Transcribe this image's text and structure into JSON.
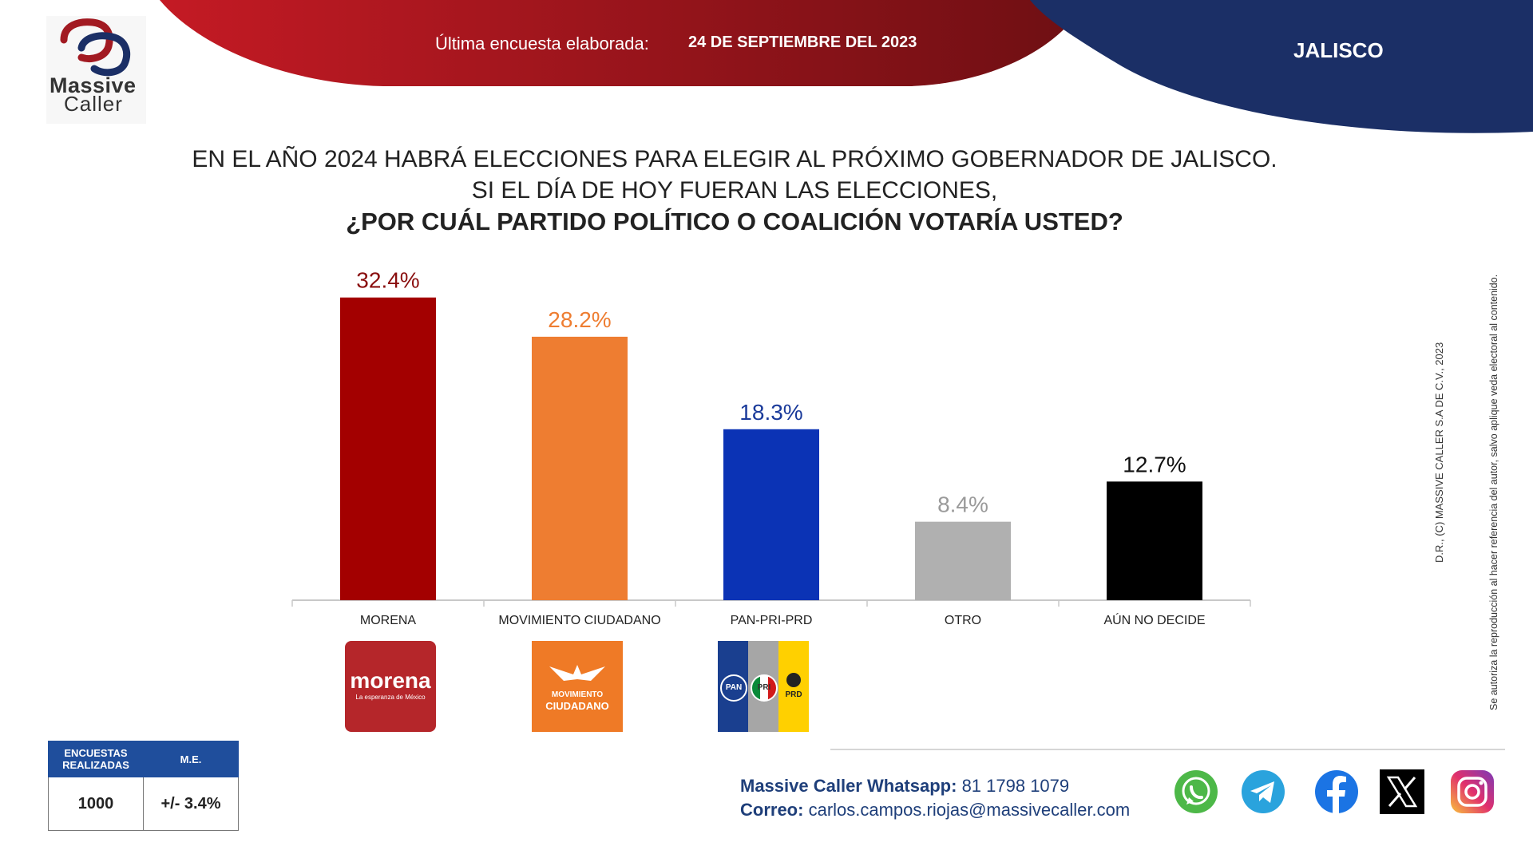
{
  "header": {
    "logo_line1": "Massive",
    "logo_line2": "Caller",
    "survey_label": "Última encuesta elaborada:",
    "survey_date": "24 DE SEPTIEMBRE DEL 2023",
    "state": "JALISCO"
  },
  "question": {
    "line1": "EN EL AÑO 2024 HABRÁ ELECCIONES PARA ELEGIR AL PRÓXIMO GOBERNADOR DE JALISCO.",
    "line2": "SI EL DÍA DE HOY FUERAN LAS ELECCIONES,",
    "line3": "¿POR CUÁL PARTIDO POLÍTICO O COALICIÓN VOTARÍA USTED?"
  },
  "chart_data": {
    "type": "bar",
    "categories": [
      "MORENA",
      "MOVIMIENTO CIUDADANO",
      "PAN-PRI-PRD",
      "OTRO",
      "AÚN NO DECIDE"
    ],
    "values": [
      32.4,
      28.2,
      18.3,
      8.4,
      12.7
    ],
    "value_labels": [
      "32.4%",
      "28.2%",
      "18.3%",
      "8.4%",
      "12.7%"
    ],
    "colors": [
      "#a30000",
      "#ee7d31",
      "#0b33b5",
      "#b0b0b0",
      "#000000"
    ],
    "label_colors": [
      "#8a0f0f",
      "#ee7d31",
      "#1a3a9a",
      "#9a9a9a",
      "#111111"
    ],
    "ylim": [
      0,
      34
    ],
    "grid": false
  },
  "party_logos": {
    "morena": {
      "name": "morena",
      "tagline": "La esperanza de México"
    },
    "mc": {
      "line1": "MOVIMIENTO",
      "line2": "CIUDADANO"
    },
    "coalition": {
      "pan": "PAN",
      "pri": "PRI",
      "prd": "PRD"
    }
  },
  "copyright": {
    "line1": "D.R., (C) MASSIVE CALLER S.A DE C.V., 2023",
    "line2": "Se autoriza la reproducción al hacer referencia del autor, salvo aplique veda electoral al contenido."
  },
  "stats": {
    "col1_header_line1": "ENCUESTAS",
    "col1_header_line2": "REALIZADAS",
    "col2_header": "M.E.",
    "surveys": "1000",
    "margin": "+/- 3.4%"
  },
  "contact": {
    "whatsapp_label": "Massive Caller Whatsapp:",
    "whatsapp_number": "81 1798 1079",
    "email_label": "Correo:",
    "email": "carlos.campos.riojas@massivecaller.com"
  },
  "social_icons": [
    "whatsapp-icon",
    "telegram-icon",
    "facebook-icon",
    "x-icon",
    "instagram-icon"
  ]
}
